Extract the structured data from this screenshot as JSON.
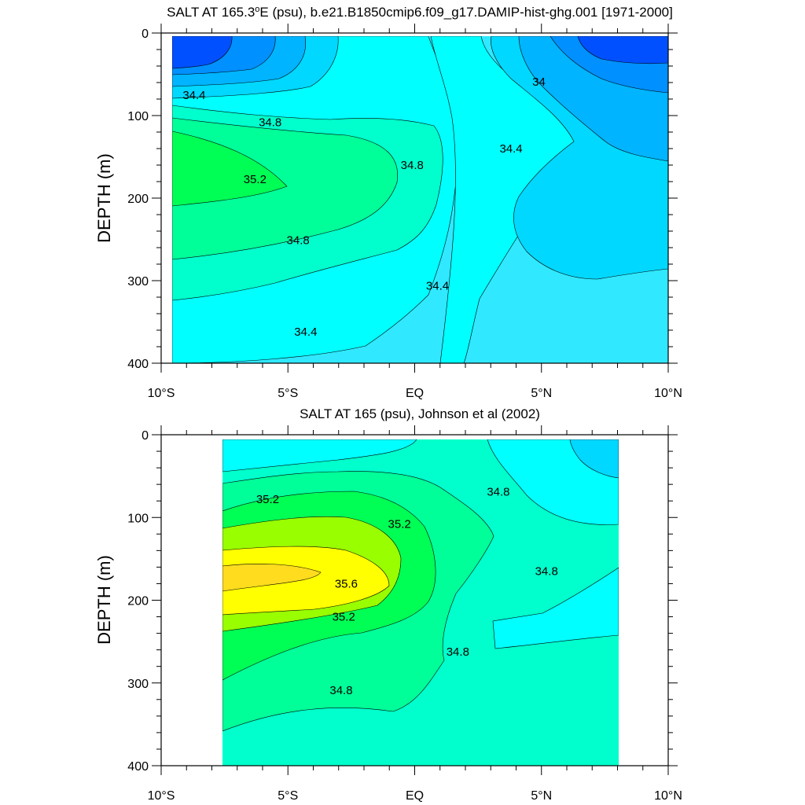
{
  "chart_data": [
    {
      "type": "contour",
      "title": "SALT AT 165.3°E (psu), b.e21.B1850cmip6.f09_g17.DAMIP-hist-ghg.001 [1971-2000]",
      "title_parts": {
        "pre": "SALT AT 165.3",
        "sup": "o",
        "post": "E (psu), b.e21.B1850cmip6.f09_g17.DAMIP-hist-ghg.001 [1971-2000]"
      },
      "ylabel": "DEPTH (m)",
      "xlim": [
        -10,
        10
      ],
      "ylim": [
        400,
        0
      ],
      "yticks": [
        "0",
        "100",
        "200",
        "300",
        "400"
      ],
      "xticks": [
        "10°S",
        "5°S",
        "EQ",
        "5°N",
        "10°N"
      ],
      "contour_interval": 0.2,
      "levels": [
        {
          "value": "33.6",
          "color": "#0050ff"
        },
        {
          "value": "33.8",
          "color": "#0090ff"
        },
        {
          "value": "34.0",
          "color": "#00b4ff"
        },
        {
          "value": "34.2",
          "color": "#00d8ff"
        },
        {
          "value": "34.4",
          "color": "#30e8ff"
        },
        {
          "value": "34.6",
          "color": "#00ffff"
        },
        {
          "value": "34.8",
          "color": "#00ffcc"
        },
        {
          "value": "35.0",
          "color": "#00ff99"
        },
        {
          "value": "35.2",
          "color": "#00ff55"
        }
      ],
      "contour_labels": [
        {
          "text": "34.4",
          "x": -8.7,
          "y": 75
        },
        {
          "text": "34.8",
          "x": -5.7,
          "y": 108
        },
        {
          "text": "35.2",
          "x": -6.3,
          "y": 177
        },
        {
          "text": "34.8",
          "x": -0.1,
          "y": 160
        },
        {
          "text": "34",
          "x": 4.9,
          "y": 59
        },
        {
          "text": "34.4",
          "x": 3.8,
          "y": 140
        },
        {
          "text": "34.8",
          "x": -4.6,
          "y": 251
        },
        {
          "text": "34.4",
          "x": 0.9,
          "y": 306
        },
        {
          "text": "34.4",
          "x": -4.3,
          "y": 362
        }
      ]
    },
    {
      "type": "contour",
      "title": "SALT AT 165 (psu), Johnson et al (2002)",
      "ylabel": "DEPTH (m)",
      "xlim": [
        -10,
        10
      ],
      "ylim": [
        400,
        0
      ],
      "data_xrange": [
        -8,
        8
      ],
      "yticks": [
        "0",
        "100",
        "200",
        "300",
        "400"
      ],
      "xticks": [
        "10°S",
        "5°S",
        "EQ",
        "5°N",
        "10°N"
      ],
      "contour_interval": 0.2,
      "levels": [
        {
          "value": "34.4",
          "color": "#00d8ff"
        },
        {
          "value": "34.6",
          "color": "#00ffff"
        },
        {
          "value": "34.8",
          "color": "#00ffcc"
        },
        {
          "value": "35.0",
          "color": "#00ff99"
        },
        {
          "value": "35.2",
          "color": "#00ff55"
        },
        {
          "value": "35.4",
          "color": "#99ff00"
        },
        {
          "value": "35.6",
          "color": "#ffff00"
        },
        {
          "value": "35.8",
          "color": "#ffdc1e"
        }
      ],
      "contour_labels": [
        {
          "text": "35.2",
          "x": -5.8,
          "y": 78
        },
        {
          "text": "35.2",
          "x": -0.6,
          "y": 108
        },
        {
          "text": "35.6",
          "x": -2.7,
          "y": 180
        },
        {
          "text": "35.2",
          "x": -2.8,
          "y": 220
        },
        {
          "text": "34.8",
          "x": 3.3,
          "y": 69
        },
        {
          "text": "34.8",
          "x": 5.2,
          "y": 165
        },
        {
          "text": "34.8",
          "x": 1.7,
          "y": 262
        },
        {
          "text": "34.8",
          "x": -2.9,
          "y": 309
        }
      ]
    }
  ]
}
